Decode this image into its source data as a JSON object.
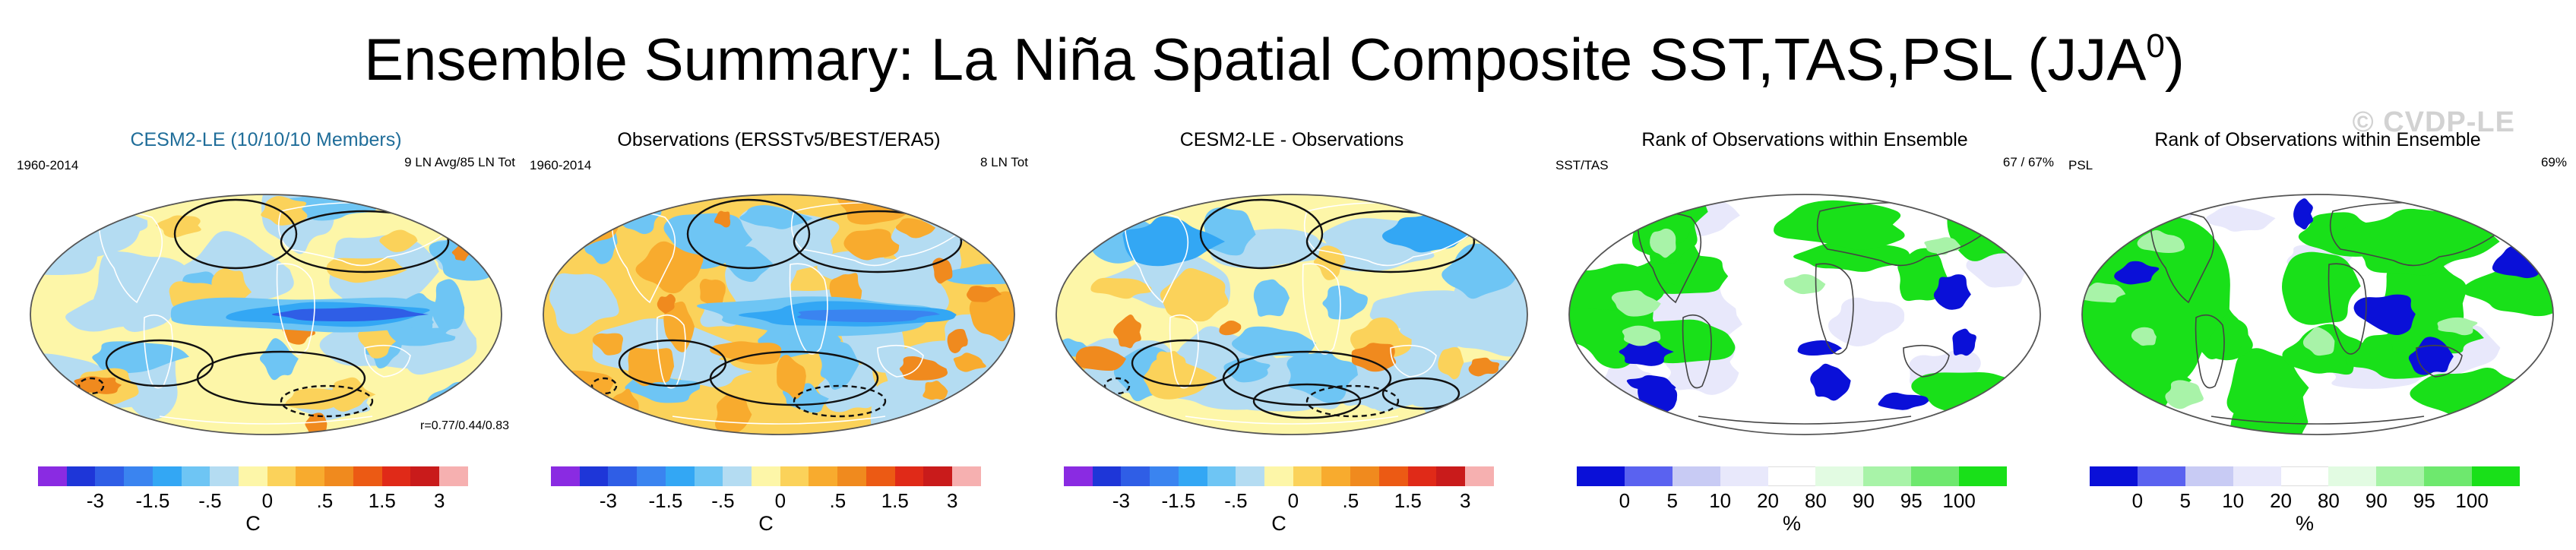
{
  "title": "Ensemble Summary: La Niña Spatial Composite SST,TAS,PSL (JJA",
  "title_superscript": "0",
  "title_close": ")",
  "watermark": "© CVDP-LE",
  "panels": [
    {
      "title": "CESM2-LE (10/10/10 Members)",
      "top_left": "1960-2014",
      "top_right": "9 LN Avg/85 LN Tot",
      "bottom_right": "r=0.77/0.44/0.83",
      "field": "anomaly",
      "colorbar": {
        "ticks": [
          "-3",
          "-1.5",
          "-.5",
          "0",
          ".5",
          "1.5",
          "3"
        ],
        "unit": "C"
      }
    },
    {
      "title": "Observations (ERSSTv5/BEST/ERA5)",
      "top_left": "1960-2014",
      "top_right": "8 LN Tot",
      "field": "anomaly",
      "colorbar": {
        "ticks": [
          "-3",
          "-1.5",
          "-.5",
          "0",
          ".5",
          "1.5",
          "3"
        ],
        "unit": "C"
      }
    },
    {
      "title": "CESM2-LE - Observations",
      "field": "anomaly",
      "colorbar": {
        "ticks": [
          "-3",
          "-1.5",
          "-.5",
          "0",
          ".5",
          "1.5",
          "3"
        ],
        "unit": "C"
      }
    },
    {
      "title": "Rank of Observations within Ensemble",
      "top_left": "SST/TAS",
      "top_right": "67 /  67%",
      "field": "rank",
      "colorbar": {
        "ticks": [
          "0",
          "5",
          "10",
          "20",
          "80",
          "90",
          "95",
          "100"
        ],
        "unit": "%"
      }
    },
    {
      "title": "Rank of Observations within Ensemble",
      "top_left": "PSL",
      "top_right": "69%",
      "field": "rank",
      "colorbar": {
        "ticks": [
          "0",
          "5",
          "10",
          "20",
          "80",
          "90",
          "95",
          "100"
        ],
        "unit": "%"
      }
    }
  ],
  "colors": {
    "anomaly_scale": [
      "#8a2be2",
      "#1e36d8",
      "#2f5ee6",
      "#3a84f0",
      "#33a7f4",
      "#6ec5f4",
      "#b4dcf2",
      "#fdf6a8",
      "#fbd25a",
      "#f8ab2e",
      "#f08a1e",
      "#ec5a14",
      "#e02a18",
      "#c91b1b",
      "#f6b0b0"
    ],
    "rank_scale": [
      "#0a10d8",
      "#5a62f0",
      "#c8cbf4",
      "#e8e8fb",
      "#ffffff",
      "#e2fbe2",
      "#a8f3a8",
      "#6ee86e",
      "#19e019"
    ],
    "globe_outline": "#555555",
    "contour": "#111111"
  },
  "chart_data": [
    {
      "type": "heatmap",
      "title": "CESM2-LE (10/10/10 Members)",
      "colorbar_ticks": [
        -3,
        -1.5,
        -0.5,
        0,
        0.5,
        1.5,
        3
      ],
      "unit": "C",
      "period": "1960-2014",
      "pattern_correlation": [
        0.77,
        0.44,
        0.83
      ]
    },
    {
      "type": "heatmap",
      "title": "Observations (ERSSTv5/BEST/ERA5)",
      "colorbar_ticks": [
        -3,
        -1.5,
        -0.5,
        0,
        0.5,
        1.5,
        3
      ],
      "unit": "C",
      "period": "1960-2014"
    },
    {
      "type": "heatmap",
      "title": "CESM2-LE - Observations",
      "colorbar_ticks": [
        -3,
        -1.5,
        -0.5,
        0,
        0.5,
        1.5,
        3
      ],
      "unit": "C"
    },
    {
      "type": "heatmap",
      "title": "Rank of Observations within Ensemble",
      "variables": "SST/TAS",
      "summary": [
        67,
        67
      ],
      "colorbar_ticks": [
        0,
        5,
        10,
        20,
        80,
        90,
        95,
        100
      ],
      "unit": "%"
    },
    {
      "type": "heatmap",
      "title": "Rank of Observations within Ensemble",
      "variables": "PSL",
      "summary": [
        69
      ],
      "colorbar_ticks": [
        0,
        5,
        10,
        20,
        80,
        90,
        95,
        100
      ],
      "unit": "%"
    }
  ]
}
